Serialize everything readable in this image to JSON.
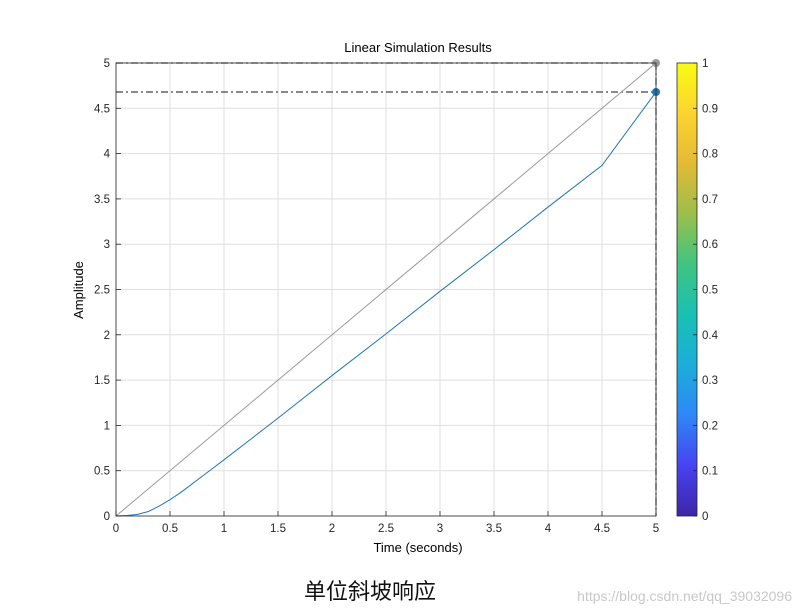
{
  "chart_data": {
    "type": "line",
    "title": "Linear Simulation Results",
    "xlabel": "Time (seconds)",
    "ylabel": "Amplitude",
    "xlim": [
      0,
      5
    ],
    "ylim": [
      0,
      5
    ],
    "xticks": [
      "0",
      "0.5",
      "1",
      "1.5",
      "2",
      "2.5",
      "3",
      "3.5",
      "4",
      "4.5",
      "5"
    ],
    "yticks": [
      "0",
      "0.5",
      "1",
      "1.5",
      "2",
      "2.5",
      "3",
      "3.5",
      "4",
      "4.5",
      "5"
    ],
    "grid": true,
    "series": [
      {
        "color": "#999999",
        "x": [
          0,
          5
        ],
        "y": [
          0,
          5
        ]
      },
      {
        "color": "#1f77b4",
        "x": [
          0,
          0.1,
          0.2,
          0.3,
          0.4,
          0.5,
          0.6,
          0.7,
          0.8,
          0.9,
          1.0,
          1.25,
          1.5,
          2.0,
          2.5,
          3.0,
          3.5,
          4.0,
          4.5,
          5.0
        ],
        "y": [
          0,
          0.005,
          0.018,
          0.05,
          0.11,
          0.18,
          0.26,
          0.35,
          0.44,
          0.53,
          0.62,
          0.85,
          1.08,
          1.55,
          2.01,
          2.48,
          2.94,
          3.41,
          3.87,
          4.68
        ]
      }
    ],
    "markers": [
      {
        "x": 5,
        "y": 5,
        "color": "#999999"
      },
      {
        "x": 5,
        "y": 4.68,
        "color": "#1f77b4"
      }
    ],
    "reference_lines": [
      {
        "y": 5
      },
      {
        "y": 4.68
      }
    ],
    "colorbar": {
      "ticks": [
        "0",
        "0.1",
        "0.2",
        "0.3",
        "0.4",
        "0.5",
        "0.6",
        "0.7",
        "0.8",
        "0.9",
        "1"
      ],
      "range": [
        0,
        1
      ],
      "colormap": [
        "#3e26a8",
        "#4743f0",
        "#2e87f7",
        "#1cadda",
        "#19c0b4",
        "#3fc482",
        "#9bbf4a",
        "#e4ba36",
        "#fcd42f",
        "#f9fb15"
      ]
    }
  },
  "caption": "单位斜坡响应",
  "watermark": "https://blog.csdn.net/qq_39032096"
}
